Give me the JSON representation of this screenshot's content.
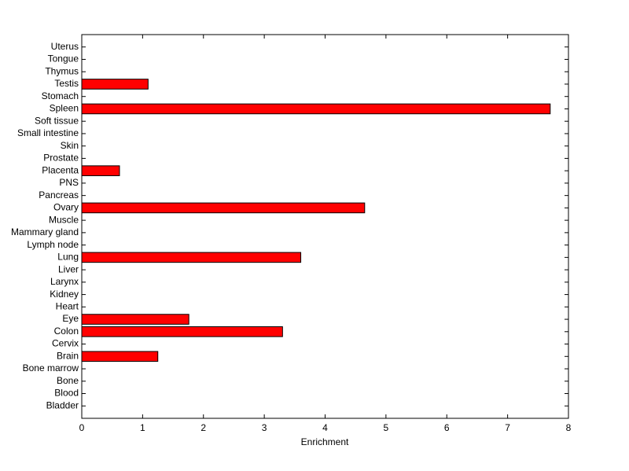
{
  "chart_data": {
    "type": "barh",
    "xlabel": "Enrichment",
    "categories": [
      "Bladder",
      "Blood",
      "Bone",
      "Bone marrow",
      "Brain",
      "Cervix",
      "Colon",
      "Eye",
      "Heart",
      "Kidney",
      "Larynx",
      "Liver",
      "Lung",
      "Lymph node",
      "Mammary gland",
      "Muscle",
      "Ovary",
      "Pancreas",
      "PNS",
      "Placenta",
      "Prostate",
      "Skin",
      "Small intestine",
      "Soft tissue",
      "Spleen",
      "Stomach",
      "Testis",
      "Thymus",
      "Tongue",
      "Uterus"
    ],
    "values": [
      0,
      0,
      0,
      0,
      1.25,
      0,
      3.3,
      1.76,
      0,
      0,
      0,
      0,
      3.6,
      0,
      0,
      0,
      4.65,
      0,
      0,
      0.62,
      0,
      0,
      0,
      0,
      7.7,
      0,
      1.09,
      0,
      0,
      0
    ],
    "color": "#ff0000",
    "xlim": [
      0,
      8
    ],
    "xticks": [
      0,
      1,
      2,
      3,
      4,
      5,
      6,
      7,
      8
    ],
    "grid": false
  }
}
